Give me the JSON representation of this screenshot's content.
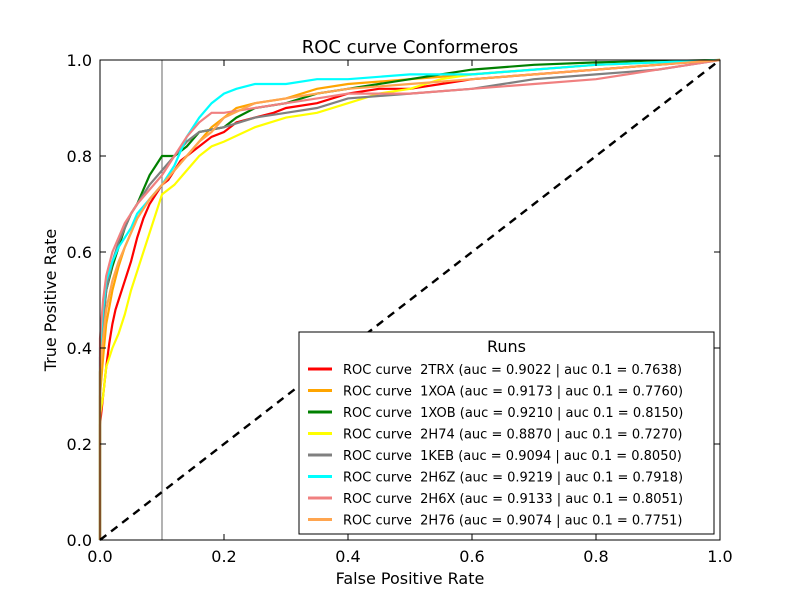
{
  "chart_data": {
    "type": "line",
    "title": "ROC curve Conformeros",
    "xlabel": "False Positive Rate",
    "ylabel": "True Positive Rate",
    "xlim": [
      0.0,
      1.0
    ],
    "ylim": [
      0.0,
      1.0
    ],
    "x_ticks": [
      "0.0",
      "0.2",
      "0.4",
      "0.6",
      "0.8",
      "1.0"
    ],
    "y_ticks": [
      "0.0",
      "0.2",
      "0.4",
      "0.6",
      "0.8",
      "1.0"
    ],
    "grid": false,
    "vertical_reference_line": {
      "x": 0.1,
      "color": "#808080"
    },
    "diagonal_reference": {
      "from": [
        0,
        0
      ],
      "to": [
        1,
        1
      ],
      "style": "dashed",
      "color": "#000000"
    },
    "legend": {
      "title": "Runs",
      "placement": "lower-right"
    },
    "series": [
      {
        "name": "ROC curve  2TRX (auc = 0.9022 | auc 0.1 = 0.7638)",
        "color": "#ff0000",
        "points": [
          [
            0,
            0
          ],
          [
            0,
            0.21
          ],
          [
            0,
            0.24
          ],
          [
            0.005,
            0.3
          ],
          [
            0.01,
            0.36
          ],
          [
            0.015,
            0.41
          ],
          [
            0.02,
            0.45
          ],
          [
            0.025,
            0.48
          ],
          [
            0.03,
            0.5
          ],
          [
            0.04,
            0.54
          ],
          [
            0.05,
            0.58
          ],
          [
            0.06,
            0.63
          ],
          [
            0.07,
            0.67
          ],
          [
            0.08,
            0.7
          ],
          [
            0.09,
            0.72
          ],
          [
            0.1,
            0.74
          ],
          [
            0.11,
            0.75
          ],
          [
            0.12,
            0.77
          ],
          [
            0.13,
            0.79
          ],
          [
            0.14,
            0.8
          ],
          [
            0.16,
            0.82
          ],
          [
            0.18,
            0.84
          ],
          [
            0.2,
            0.85
          ],
          [
            0.22,
            0.87
          ],
          [
            0.25,
            0.88
          ],
          [
            0.28,
            0.89
          ],
          [
            0.3,
            0.9
          ],
          [
            0.35,
            0.91
          ],
          [
            0.4,
            0.93
          ],
          [
            0.45,
            0.94
          ],
          [
            0.5,
            0.94
          ],
          [
            0.55,
            0.95
          ],
          [
            0.6,
            0.96
          ],
          [
            0.7,
            0.97
          ],
          [
            0.8,
            0.98
          ],
          [
            0.9,
            0.99
          ],
          [
            1.0,
            1.0
          ]
        ]
      },
      {
        "name": "ROC curve  1XOA (auc = 0.9173 | auc 0.1 = 0.7760)",
        "color": "#ffa500",
        "points": [
          [
            0,
            0
          ],
          [
            0,
            0.3
          ],
          [
            0.005,
            0.38
          ],
          [
            0.01,
            0.45
          ],
          [
            0.02,
            0.52
          ],
          [
            0.03,
            0.57
          ],
          [
            0.04,
            0.61
          ],
          [
            0.05,
            0.64
          ],
          [
            0.06,
            0.67
          ],
          [
            0.08,
            0.71
          ],
          [
            0.1,
            0.74
          ],
          [
            0.12,
            0.77
          ],
          [
            0.14,
            0.8
          ],
          [
            0.16,
            0.83
          ],
          [
            0.18,
            0.86
          ],
          [
            0.2,
            0.88
          ],
          [
            0.22,
            0.9
          ],
          [
            0.25,
            0.91
          ],
          [
            0.3,
            0.92
          ],
          [
            0.35,
            0.94
          ],
          [
            0.4,
            0.95
          ],
          [
            0.5,
            0.96
          ],
          [
            0.6,
            0.97
          ],
          [
            0.7,
            0.98
          ],
          [
            0.8,
            0.99
          ],
          [
            0.9,
            0.995
          ],
          [
            1.0,
            1.0
          ]
        ]
      },
      {
        "name": "ROC curve  1XOB (auc = 0.9210 | auc 0.1 = 0.8150)",
        "color": "#008000",
        "points": [
          [
            0,
            0
          ],
          [
            0,
            0.35
          ],
          [
            0.005,
            0.45
          ],
          [
            0.01,
            0.52
          ],
          [
            0.02,
            0.57
          ],
          [
            0.03,
            0.61
          ],
          [
            0.04,
            0.65
          ],
          [
            0.05,
            0.68
          ],
          [
            0.06,
            0.7
          ],
          [
            0.07,
            0.73
          ],
          [
            0.08,
            0.76
          ],
          [
            0.09,
            0.78
          ],
          [
            0.1,
            0.8
          ],
          [
            0.12,
            0.8
          ],
          [
            0.14,
            0.82
          ],
          [
            0.16,
            0.85
          ],
          [
            0.2,
            0.86
          ],
          [
            0.22,
            0.88
          ],
          [
            0.25,
            0.9
          ],
          [
            0.3,
            0.91
          ],
          [
            0.35,
            0.93
          ],
          [
            0.4,
            0.94
          ],
          [
            0.45,
            0.95
          ],
          [
            0.5,
            0.96
          ],
          [
            0.6,
            0.98
          ],
          [
            0.7,
            0.99
          ],
          [
            0.8,
            0.995
          ],
          [
            1.0,
            1.0
          ]
        ]
      },
      {
        "name": "ROC curve  2H74 (auc = 0.8870 | auc 0.1 = 0.7270)",
        "color": "#ffff00",
        "points": [
          [
            0,
            0
          ],
          [
            0,
            0.26
          ],
          [
            0.005,
            0.3
          ],
          [
            0.01,
            0.36
          ],
          [
            0.02,
            0.4
          ],
          [
            0.03,
            0.43
          ],
          [
            0.04,
            0.47
          ],
          [
            0.05,
            0.52
          ],
          [
            0.06,
            0.56
          ],
          [
            0.07,
            0.6
          ],
          [
            0.08,
            0.64
          ],
          [
            0.09,
            0.68
          ],
          [
            0.1,
            0.72
          ],
          [
            0.12,
            0.74
          ],
          [
            0.14,
            0.77
          ],
          [
            0.16,
            0.8
          ],
          [
            0.18,
            0.82
          ],
          [
            0.2,
            0.83
          ],
          [
            0.25,
            0.86
          ],
          [
            0.3,
            0.88
          ],
          [
            0.35,
            0.89
          ],
          [
            0.4,
            0.91
          ],
          [
            0.45,
            0.93
          ],
          [
            0.5,
            0.94
          ],
          [
            0.55,
            0.96
          ],
          [
            0.6,
            0.97
          ],
          [
            0.7,
            0.98
          ],
          [
            0.8,
            0.99
          ],
          [
            1.0,
            1.0
          ]
        ]
      },
      {
        "name": "ROC curve  1KEB (auc = 0.9094 | auc 0.1 = 0.8050)",
        "color": "#808080",
        "points": [
          [
            0,
            0
          ],
          [
            0,
            0.38
          ],
          [
            0.005,
            0.45
          ],
          [
            0.01,
            0.52
          ],
          [
            0.02,
            0.58
          ],
          [
            0.03,
            0.62
          ],
          [
            0.04,
            0.65
          ],
          [
            0.05,
            0.68
          ],
          [
            0.06,
            0.7
          ],
          [
            0.08,
            0.74
          ],
          [
            0.1,
            0.77
          ],
          [
            0.12,
            0.8
          ],
          [
            0.14,
            0.83
          ],
          [
            0.16,
            0.85
          ],
          [
            0.2,
            0.86
          ],
          [
            0.25,
            0.88
          ],
          [
            0.3,
            0.89
          ],
          [
            0.35,
            0.9
          ],
          [
            0.4,
            0.92
          ],
          [
            0.5,
            0.93
          ],
          [
            0.6,
            0.94
          ],
          [
            0.65,
            0.95
          ],
          [
            0.7,
            0.96
          ],
          [
            0.8,
            0.97
          ],
          [
            0.9,
            0.98
          ],
          [
            0.95,
            0.99
          ],
          [
            1.0,
            1.0
          ]
        ]
      },
      {
        "name": "ROC curve  2H6Z (auc = 0.9219 | auc 0.1 = 0.7918)",
        "color": "#00ffff",
        "points": [
          [
            0,
            0
          ],
          [
            0,
            0.4
          ],
          [
            0.005,
            0.48
          ],
          [
            0.01,
            0.54
          ],
          [
            0.02,
            0.58
          ],
          [
            0.03,
            0.61
          ],
          [
            0.04,
            0.63
          ],
          [
            0.05,
            0.65
          ],
          [
            0.06,
            0.68
          ],
          [
            0.08,
            0.71
          ],
          [
            0.1,
            0.74
          ],
          [
            0.12,
            0.78
          ],
          [
            0.14,
            0.84
          ],
          [
            0.16,
            0.88
          ],
          [
            0.18,
            0.91
          ],
          [
            0.2,
            0.93
          ],
          [
            0.22,
            0.94
          ],
          [
            0.25,
            0.95
          ],
          [
            0.3,
            0.95
          ],
          [
            0.35,
            0.96
          ],
          [
            0.4,
            0.96
          ],
          [
            0.5,
            0.97
          ],
          [
            0.6,
            0.97
          ],
          [
            0.7,
            0.98
          ],
          [
            0.8,
            0.99
          ],
          [
            0.9,
            0.995
          ],
          [
            1.0,
            1.0
          ]
        ]
      },
      {
        "name": "ROC curve  2H6X (auc = 0.9133 | auc 0.1 = 0.8051)",
        "color": "#f08080",
        "points": [
          [
            0,
            0
          ],
          [
            0,
            0.42
          ],
          [
            0.005,
            0.5
          ],
          [
            0.01,
            0.55
          ],
          [
            0.02,
            0.6
          ],
          [
            0.03,
            0.63
          ],
          [
            0.04,
            0.66
          ],
          [
            0.05,
            0.68
          ],
          [
            0.06,
            0.7
          ],
          [
            0.08,
            0.73
          ],
          [
            0.1,
            0.76
          ],
          [
            0.12,
            0.8
          ],
          [
            0.14,
            0.84
          ],
          [
            0.16,
            0.87
          ],
          [
            0.18,
            0.89
          ],
          [
            0.2,
            0.89
          ],
          [
            0.25,
            0.9
          ],
          [
            0.3,
            0.91
          ],
          [
            0.35,
            0.92
          ],
          [
            0.4,
            0.93
          ],
          [
            0.5,
            0.93
          ],
          [
            0.6,
            0.94
          ],
          [
            0.7,
            0.95
          ],
          [
            0.8,
            0.96
          ],
          [
            0.9,
            0.98
          ],
          [
            0.95,
            0.99
          ],
          [
            1.0,
            1.0
          ]
        ]
      },
      {
        "name": "ROC curve  2H76 (auc = 0.9074 | auc 0.1 = 0.7751)",
        "color": "#ffa54f",
        "points": [
          [
            0,
            0
          ],
          [
            0,
            0.35
          ],
          [
            0.005,
            0.42
          ],
          [
            0.01,
            0.48
          ],
          [
            0.02,
            0.54
          ],
          [
            0.03,
            0.58
          ],
          [
            0.04,
            0.61
          ],
          [
            0.05,
            0.64
          ],
          [
            0.06,
            0.67
          ],
          [
            0.08,
            0.71
          ],
          [
            0.1,
            0.74
          ],
          [
            0.12,
            0.77
          ],
          [
            0.14,
            0.8
          ],
          [
            0.16,
            0.83
          ],
          [
            0.18,
            0.85
          ],
          [
            0.2,
            0.88
          ],
          [
            0.25,
            0.91
          ],
          [
            0.3,
            0.92
          ],
          [
            0.35,
            0.93
          ],
          [
            0.4,
            0.94
          ],
          [
            0.5,
            0.95
          ],
          [
            0.6,
            0.96
          ],
          [
            0.7,
            0.97
          ],
          [
            0.8,
            0.98
          ],
          [
            0.9,
            0.99
          ],
          [
            1.0,
            1.0
          ]
        ]
      }
    ]
  }
}
